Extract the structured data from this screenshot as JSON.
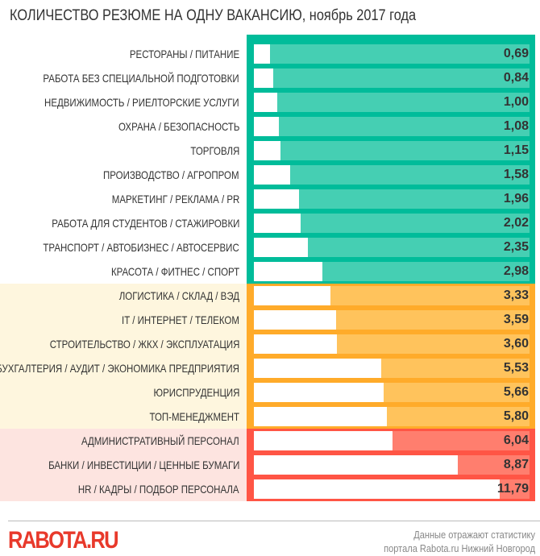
{
  "chart_data": {
    "type": "bar",
    "orientation": "horizontal",
    "title": "КОЛИЧЕСТВО РЕЗЮМЕ НА ОДНУ ВАКАНСИЮ, ноябрь 2017 года",
    "groups": [
      {
        "color_border": "#00bc9a",
        "color_bar": "#45cfb3",
        "color_label_bg": "#ffffff",
        "categories": [
          "РЕСТОРАНЫ / ПИТАНИЕ",
          "РАБОТА БЕЗ СПЕЦИАЛЬНОЙ ПОДГОТОВКИ",
          "НЕДВИЖИМОСТЬ / РИЕЛТОРСКИЕ УСЛУГИ",
          "ОХРАНА / БЕЗОПАСНОСТЬ",
          "ТОРГОВЛЯ",
          "ПРОИЗВОДСТВО / АГРОПРОМ",
          "МАРКЕТИНГ / РЕКЛАМА / PR",
          "РАБОТА ДЛЯ СТУДЕНТОВ / СТАЖИРОВКИ",
          "ТРАНСПОРТ / АВТОБИЗНЕС / АВТОСЕРВИС",
          "КРАСОТА / ФИТНЕС / СПОРТ"
        ],
        "values": [
          0.69,
          0.84,
          1.0,
          1.08,
          1.15,
          1.58,
          1.96,
          2.02,
          2.35,
          2.98
        ],
        "labels": [
          "0,69",
          "0,84",
          "1,00",
          "1,08",
          "1,15",
          "1,58",
          "1,96",
          "2,02",
          "2,35",
          "2,98"
        ]
      },
      {
        "color_border": "#ffab2a",
        "color_bar": "#ffc35c",
        "color_label_bg": "#fef6de",
        "categories": [
          "ЛОГИСТИКА / СКЛАД / ВЭД",
          "IT / ИНТЕРНЕТ / ТЕЛЕКОМ",
          "СТРОИТЕЛЬСТВО / ЖКХ / ЭКСПЛУАТАЦИЯ",
          "БУХГАЛТЕРИЯ / АУДИТ / ЭКОНОМИКА ПРЕДПРИЯТИЯ",
          "ЮРИСПРУДЕНЦИЯ",
          "ТОП-МЕНЕДЖМЕНТ"
        ],
        "values": [
          3.33,
          3.59,
          3.6,
          5.53,
          5.66,
          5.8
        ],
        "labels": [
          "3,33",
          "3,59",
          "3,60",
          "5,53",
          "5,66",
          "5,80"
        ]
      },
      {
        "color_border": "#ff5545",
        "color_bar": "#ff7e6e",
        "color_label_bg": "#fde4e0",
        "categories": [
          "АДМИНИСТРАТИВНЫЙ ПЕРСОНАЛ",
          "БАНКИ / ИНВЕСТИЦИИ / ЦЕННЫЕ БУМАГИ",
          "HR / КАДРЫ / ПОДБОР ПЕРСОНАЛА"
        ],
        "values": [
          6.04,
          8.87,
          11.79
        ],
        "labels": [
          "6,04",
          "8,87",
          "11,79"
        ]
      }
    ]
  },
  "footer": {
    "logo": "RABOTA.RU",
    "note_line1": "Данные отражают статистику",
    "note_line2": "портала Rabota.ru Нижний Новгород"
  }
}
